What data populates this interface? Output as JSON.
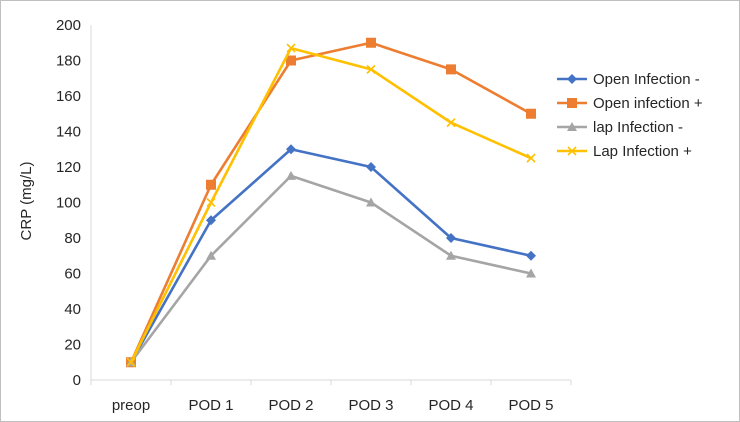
{
  "chart_data": {
    "type": "line",
    "title": "",
    "xlabel": "",
    "ylabel": "CRP (mg/L)",
    "ylim": [
      0,
      200
    ],
    "ytick_step": 20,
    "grid": false,
    "legend_position": "right",
    "categories": [
      "preop",
      "POD 1",
      "POD 2",
      "POD 3",
      "POD 4",
      "POD 5"
    ],
    "series": [
      {
        "name": "Open Infection -",
        "color": "#4472C4",
        "marker": "diamond",
        "values": [
          10,
          90,
          130,
          120,
          80,
          70
        ]
      },
      {
        "name": "Open infection +",
        "color": "#ED7D31",
        "marker": "square",
        "values": [
          10,
          110,
          180,
          190,
          175,
          150
        ]
      },
      {
        "name": "lap Infection -",
        "color": "#A5A5A5",
        "marker": "triangle",
        "values": [
          10,
          70,
          115,
          100,
          70,
          60
        ]
      },
      {
        "name": "Lap Infection +",
        "color": "#FFC000",
        "marker": "x",
        "values": [
          10,
          100,
          187,
          175,
          145,
          125
        ]
      }
    ]
  }
}
